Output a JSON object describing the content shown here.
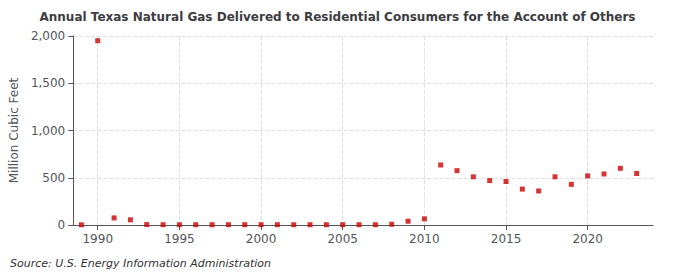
{
  "chart_data": {
    "type": "scatter",
    "title": "Annual Texas Natural Gas Delivered to Residential Consumers for the Account of Others",
    "ylabel": "Million Cubic Feet",
    "source": "Source: U.S. Energy Information Administration",
    "x": [
      1989,
      1990,
      1991,
      1992,
      1993,
      1994,
      1995,
      1996,
      1997,
      1998,
      1999,
      2000,
      2001,
      2002,
      2003,
      2004,
      2005,
      2006,
      2007,
      2008,
      2009,
      2010,
      2011,
      2012,
      2013,
      2014,
      2015,
      2016,
      2017,
      2018,
      2019,
      2020,
      2021,
      2022,
      2023
    ],
    "values": [
      2,
      1950,
      75,
      55,
      5,
      3,
      3,
      3,
      3,
      3,
      3,
      3,
      3,
      3,
      3,
      3,
      3,
      3,
      3,
      8,
      40,
      65,
      635,
      575,
      510,
      470,
      460,
      380,
      360,
      510,
      430,
      520,
      540,
      600,
      545
    ],
    "color": "#cc0000",
    "marker": "square",
    "grid": true,
    "xlim": [
      1988.5,
      2024
    ],
    "xticks": [
      1990,
      1995,
      2000,
      2005,
      2010,
      2015,
      2020
    ],
    "ylim": [
      0,
      2000
    ],
    "yticks": [
      0,
      500,
      {
        "value": 1000,
        "label": "1,000"
      },
      {
        "value": 1500,
        "label": "1,500"
      },
      {
        "value": 2000,
        "label": "2,000"
      }
    ]
  }
}
